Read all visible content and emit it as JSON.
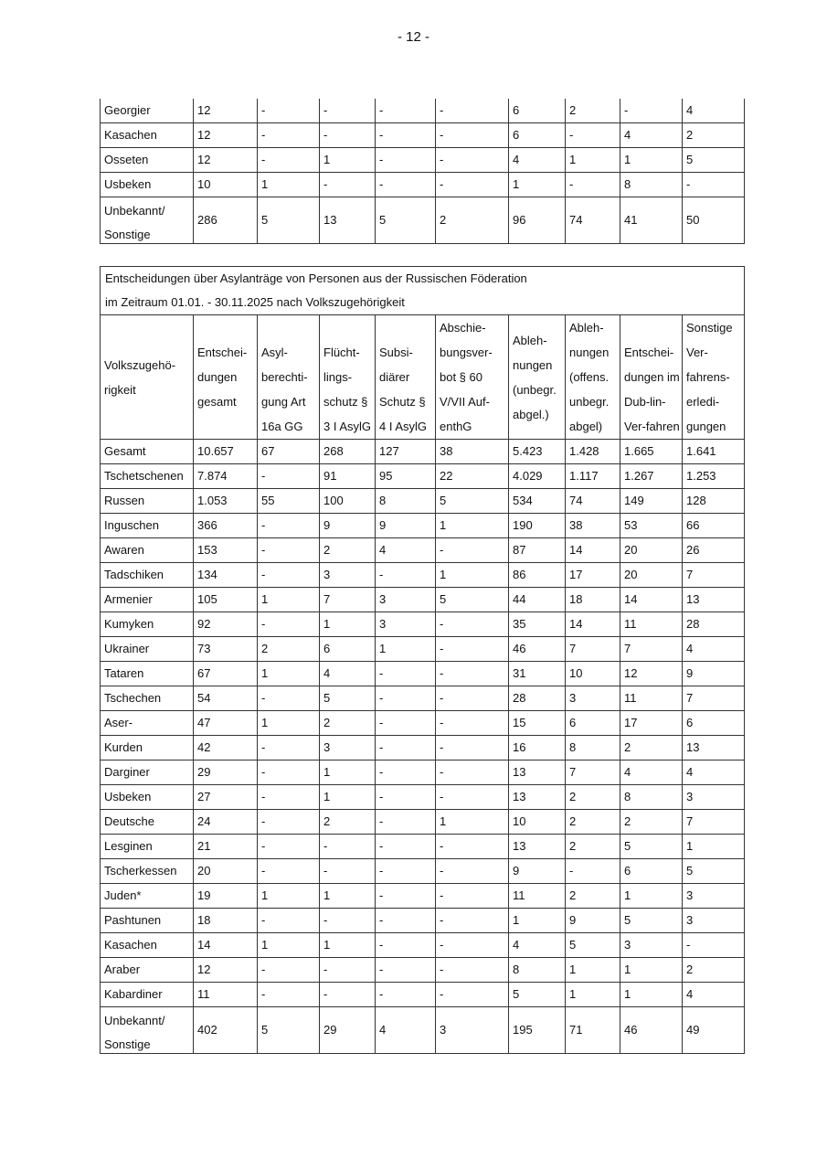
{
  "page_number": "- 12 -",
  "table1": {
    "rows": [
      [
        "Georgier",
        "12",
        "-",
        "-",
        "-",
        "-",
        "6",
        "2",
        "-",
        "4"
      ],
      [
        "Kasachen",
        "12",
        "-",
        "-",
        "-",
        "-",
        "6",
        "-",
        "4",
        "2"
      ],
      [
        "Osseten",
        "12",
        "-",
        "1",
        "-",
        "-",
        "4",
        "1",
        "1",
        "5"
      ],
      [
        "Usbeken",
        "10",
        "1",
        "-",
        "-",
        "-",
        "1",
        "-",
        "8",
        "-"
      ],
      [
        "Unbekannt/ Sonstige",
        "286",
        "5",
        "13",
        "5",
        "2",
        "96",
        "74",
        "41",
        "50"
      ]
    ]
  },
  "table2": {
    "title_line1": "Entscheidungen über Asylanträge von Personen aus der Russischen Föderation",
    "title_line2": "im Zeitraum 01.01. - 30.11.2025 nach Volkszugehörigkeit",
    "headers": [
      "Volkszugehö-rigkeit",
      "Entschei-dungen gesamt",
      "Asyl-berechti-gung Art 16a GG",
      "Flücht-lings-schutz § 3 I AsylG",
      "Subsi-diärer Schutz § 4 I AsylG",
      "Abschie-bungsver-bot § 60 V/VII Auf-enthG",
      "Ableh-nungen (unbegr. abgel.)",
      "Ableh-nungen (offens. unbegr. abgel)",
      "Entschei-dungen im Dub-lin-Ver-fahren",
      "Sonstige Ver-fahrens-erledi-gungen"
    ],
    "rows": [
      [
        "Gesamt",
        "10.657",
        "67",
        "268",
        "127",
        "38",
        "5.423",
        "1.428",
        "1.665",
        "1.641"
      ],
      [
        "Tschetschenen",
        "7.874",
        "-",
        "91",
        "95",
        "22",
        "4.029",
        "1.117",
        "1.267",
        "1.253"
      ],
      [
        "Russen",
        "1.053",
        "55",
        "100",
        "8",
        "5",
        "534",
        "74",
        "149",
        "128"
      ],
      [
        "Inguschen",
        "366",
        "-",
        "9",
        "9",
        "1",
        "190",
        "38",
        "53",
        "66"
      ],
      [
        "Awaren",
        "153",
        "-",
        "2",
        "4",
        "-",
        "87",
        "14",
        "20",
        "26"
      ],
      [
        "Tadschiken",
        "134",
        "-",
        "3",
        "-",
        "1",
        "86",
        "17",
        "20",
        "7"
      ],
      [
        "Armenier",
        "105",
        "1",
        "7",
        "3",
        "5",
        "44",
        "18",
        "14",
        "13"
      ],
      [
        "Kumyken",
        "92",
        "-",
        "1",
        "3",
        "-",
        "35",
        "14",
        "11",
        "28"
      ],
      [
        "Ukrainer",
        "73",
        "2",
        "6",
        "1",
        "-",
        "46",
        "7",
        "7",
        "4"
      ],
      [
        "Tataren",
        "67",
        "1",
        "4",
        "-",
        "-",
        "31",
        "10",
        "12",
        "9"
      ],
      [
        "Tschechen",
        "54",
        "-",
        "5",
        "-",
        "-",
        "28",
        "3",
        "11",
        "7"
      ],
      [
        "Aser-",
        "47",
        "1",
        "2",
        "-",
        "-",
        "15",
        "6",
        "17",
        "6"
      ],
      [
        "Kurden",
        "42",
        "-",
        "3",
        "-",
        "-",
        "16",
        "8",
        "2",
        "13"
      ],
      [
        "Darginer",
        "29",
        "-",
        "1",
        "-",
        "-",
        "13",
        "7",
        "4",
        "4"
      ],
      [
        "Usbeken",
        "27",
        "-",
        "1",
        "-",
        "-",
        "13",
        "2",
        "8",
        "3"
      ],
      [
        "Deutsche",
        "24",
        "-",
        "2",
        "-",
        "1",
        "10",
        "2",
        "2",
        "7"
      ],
      [
        "Lesginen",
        "21",
        "-",
        "-",
        "-",
        "-",
        "13",
        "2",
        "5",
        "1"
      ],
      [
        "Tscherkessen",
        "20",
        "-",
        "-",
        "-",
        "-",
        "9",
        "-",
        "6",
        "5"
      ],
      [
        "Juden*",
        "19",
        "1",
        "1",
        "-",
        "-",
        "11",
        "2",
        "1",
        "3"
      ],
      [
        "Pashtunen",
        "18",
        "-",
        "-",
        "-",
        "-",
        "1",
        "9",
        "5",
        "3"
      ],
      [
        "Kasachen",
        "14",
        "1",
        "1",
        "-",
        "-",
        "4",
        "5",
        "3",
        "-"
      ],
      [
        "Araber",
        "12",
        "-",
        "-",
        "-",
        "-",
        "8",
        "1",
        "1",
        "2"
      ],
      [
        "Kabardiner",
        "11",
        "-",
        "-",
        "-",
        "-",
        "5",
        "1",
        "1",
        "4"
      ],
      [
        "Unbekannt/ Sonstige",
        "402",
        "5",
        "29",
        "4",
        "3",
        "195",
        "71",
        "46",
        "49"
      ]
    ]
  }
}
